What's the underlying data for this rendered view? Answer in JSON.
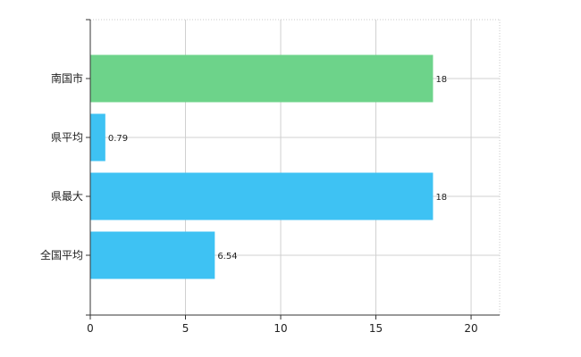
{
  "chart_data": {
    "type": "bar",
    "orientation": "horizontal",
    "categories": [
      "南国市",
      "県平均",
      "県最大",
      "全国平均"
    ],
    "values": [
      18,
      0.79,
      18,
      6.54
    ],
    "value_labels": [
      "18",
      "0.79",
      "18",
      "6.54"
    ],
    "bar_colors": [
      "#6dd38a",
      "#3ec2f3",
      "#3ec2f3",
      "#3ec2f3"
    ],
    "xlim": [
      0,
      21.5
    ],
    "xticks": [
      0,
      5,
      10,
      15,
      20
    ],
    "grid": true,
    "title": "",
    "xlabel": "",
    "ylabel": ""
  }
}
